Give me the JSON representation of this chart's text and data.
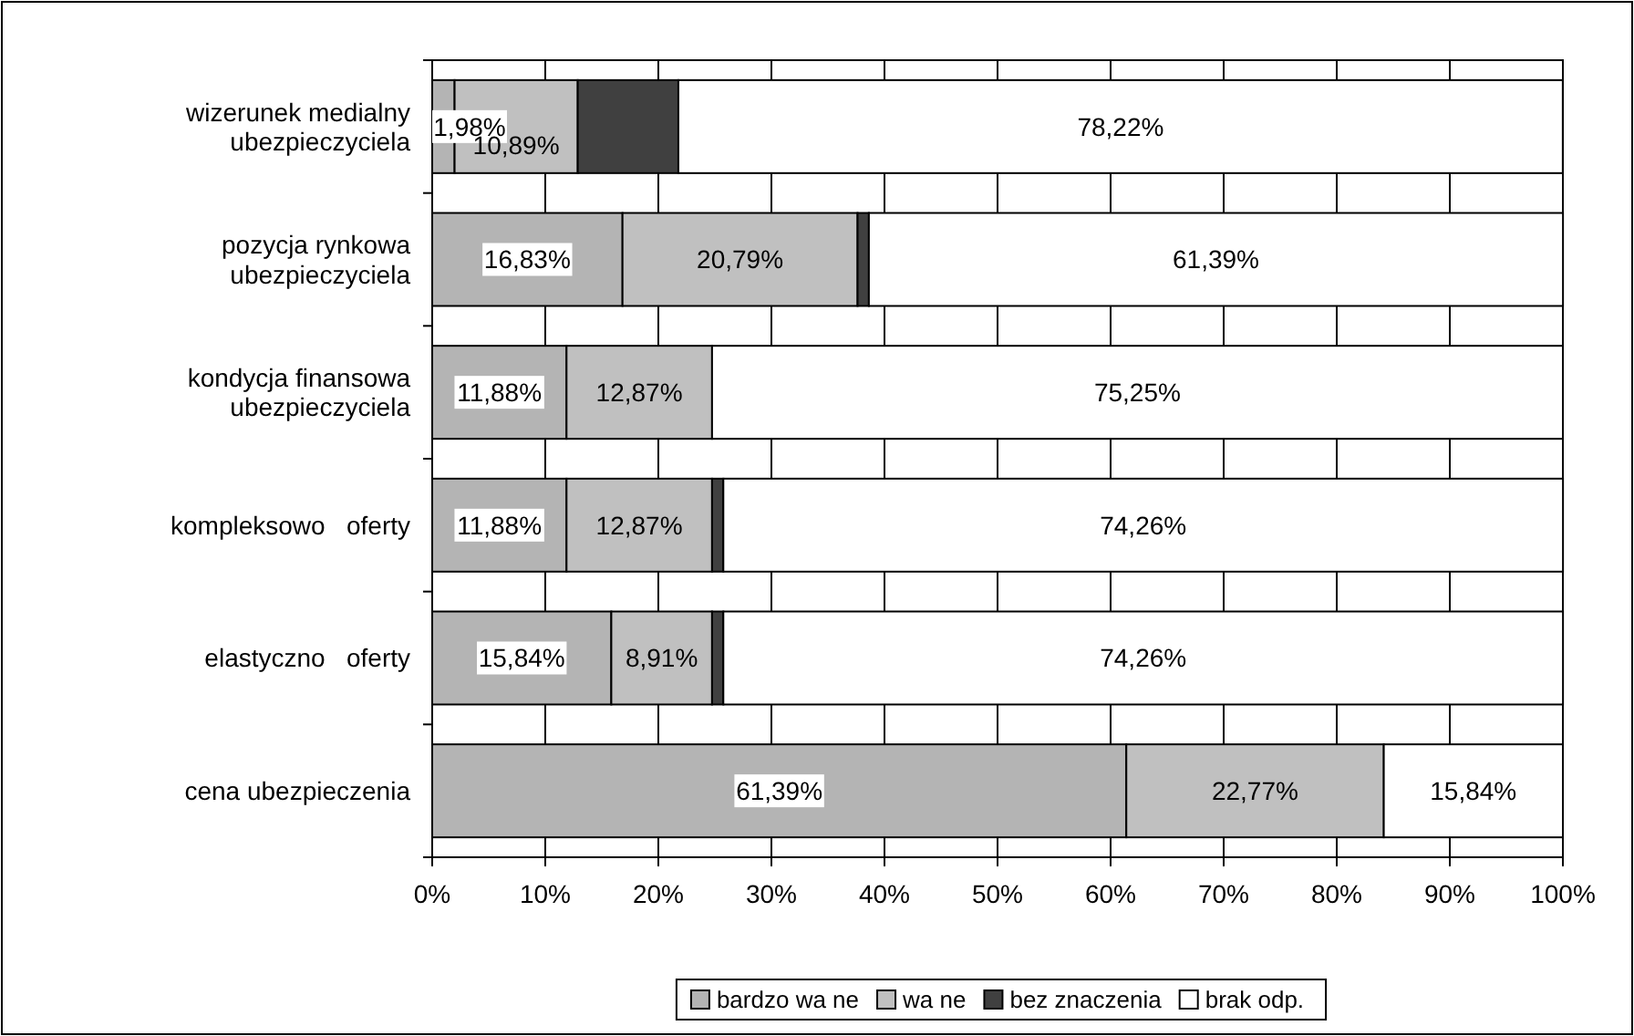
{
  "chart_data": {
    "type": "bar",
    "orientation": "horizontal",
    "stacked": true,
    "categories": [
      "wizerunek medialny ubezpieczyciela",
      "pozycja rynkowa ubezpieczyciela",
      "kondycja finansowa ubezpieczyciela",
      "kompleksowo   oferty",
      "elastyczno   oferty",
      "cena ubezpieczenia"
    ],
    "series": [
      {
        "name": "bardzo wa ne",
        "color": "#b4b4b4",
        "values": [
          1.98,
          16.83,
          11.88,
          11.88,
          15.84,
          61.39
        ],
        "value_labels": [
          "1,98%",
          "16,83%",
          "11,88%",
          "11,88%",
          "15,84%",
          "61,39%"
        ]
      },
      {
        "name": "wa ne",
        "color": "#c0c0c0",
        "values": [
          10.89,
          20.79,
          12.87,
          12.87,
          8.91,
          22.77
        ],
        "value_labels": [
          "10,89%",
          "20,79%",
          "12,87%",
          "12,87%",
          "8,91%",
          "22,77%"
        ]
      },
      {
        "name": "bez znaczenia",
        "color": "#404040",
        "values": [
          8.9,
          1,
          0,
          1,
          1,
          0
        ],
        "value_labels": [
          null,
          null,
          null,
          null,
          null,
          null
        ]
      },
      {
        "name": "brak odp.",
        "color": "#ffffff",
        "values": [
          78.22,
          61.39,
          75.25,
          74.26,
          74.26,
          15.84
        ],
        "value_labels": [
          "78,22%",
          "61,39%",
          "75,25%",
          "74,26%",
          "74,26%",
          "15,84%"
        ]
      }
    ],
    "xlim": [
      0,
      100
    ],
    "xticks": [
      {
        "value": 0,
        "label": "0%"
      },
      {
        "value": 10,
        "label": "10%"
      },
      {
        "value": 20,
        "label": "20%"
      },
      {
        "value": 30,
        "label": "30%"
      },
      {
        "value": 40,
        "label": "40%"
      },
      {
        "value": 50,
        "label": "50%"
      },
      {
        "value": 60,
        "label": "60%"
      },
      {
        "value": 70,
        "label": "70%"
      },
      {
        "value": 80,
        "label": "80%"
      },
      {
        "value": 90,
        "label": "90%"
      },
      {
        "value": 100,
        "label": "100%"
      }
    ],
    "grid": "x",
    "legend": "bottom"
  }
}
